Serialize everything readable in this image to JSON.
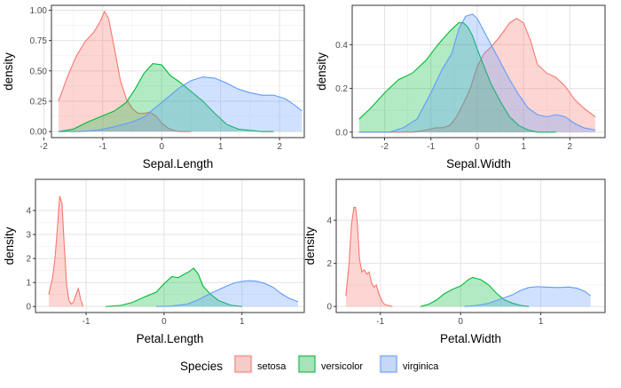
{
  "legend": {
    "title": "Species",
    "position": "bottom",
    "items": [
      {
        "name": "setosa",
        "color": "#F8766D"
      },
      {
        "name": "versicolor",
        "color": "#00BA38"
      },
      {
        "name": "virginica",
        "color": "#619CFF"
      }
    ]
  },
  "chart_data": [
    {
      "type": "area",
      "xlabel": "Sepal.Length",
      "ylabel": "density",
      "xlim": [
        -1.87,
        2.42
      ],
      "ylim": [
        -0.05,
        1.04
      ],
      "xticks": [
        -2,
        -1,
        0,
        1,
        2
      ],
      "yticks": [
        0.0,
        0.25,
        0.5,
        0.75,
        1.0
      ],
      "ytick_labels": [
        "0.00",
        "0.25",
        "0.50",
        "0.75",
        "1.00"
      ],
      "grid": true,
      "series": [
        {
          "name": "setosa",
          "x": [
            -1.75,
            -1.6,
            -1.45,
            -1.3,
            -1.15,
            -1.05,
            -0.97,
            -0.9,
            -0.8,
            -0.7,
            -0.6,
            -0.5,
            -0.4,
            -0.3,
            -0.2,
            -0.1,
            0.0,
            0.1,
            0.2,
            0.3,
            0.4,
            0.5
          ],
          "y": [
            0.25,
            0.45,
            0.62,
            0.74,
            0.82,
            0.9,
            0.99,
            0.93,
            0.68,
            0.42,
            0.27,
            0.19,
            0.15,
            0.15,
            0.16,
            0.13,
            0.07,
            0.03,
            0.01,
            0.0,
            0.0,
            0.0
          ]
        },
        {
          "name": "versicolor",
          "x": [
            -1.75,
            -1.5,
            -1.25,
            -1.0,
            -0.8,
            -0.6,
            -0.45,
            -0.3,
            -0.15,
            0.0,
            0.15,
            0.3,
            0.5,
            0.7,
            0.9,
            1.1,
            1.3,
            1.5,
            1.7,
            1.9
          ],
          "y": [
            0.0,
            0.02,
            0.08,
            0.13,
            0.17,
            0.24,
            0.35,
            0.48,
            0.56,
            0.55,
            0.46,
            0.41,
            0.33,
            0.25,
            0.15,
            0.06,
            0.02,
            0.01,
            0.0,
            0.0
          ],
          "fill_start": -1.75,
          "fill_end": 1.9
        },
        {
          "name": "virginica",
          "x": [
            -1.75,
            -1.4,
            -1.1,
            -0.8,
            -0.5,
            -0.3,
            -0.1,
            0.1,
            0.3,
            0.5,
            0.7,
            0.9,
            1.1,
            1.3,
            1.5,
            1.7,
            1.9,
            2.1,
            2.25,
            2.38
          ],
          "y": [
            0.0,
            0.0,
            0.01,
            0.04,
            0.08,
            0.12,
            0.2,
            0.28,
            0.36,
            0.42,
            0.45,
            0.44,
            0.4,
            0.35,
            0.32,
            0.3,
            0.3,
            0.27,
            0.22,
            0.17
          ]
        }
      ]
    },
    {
      "type": "area",
      "xlabel": "Sepal.Width",
      "ylabel": "density",
      "xlim": [
        -2.7,
        2.76
      ],
      "ylim": [
        -0.025,
        0.58
      ],
      "xticks": [
        -2,
        -1,
        0,
        1,
        2
      ],
      "yticks": [
        0.0,
        0.2,
        0.4
      ],
      "ytick_labels": [
        "0.0",
        "0.2",
        "0.4"
      ],
      "grid": true,
      "series": [
        {
          "name": "setosa",
          "x": [
            -2.55,
            -2.2,
            -1.8,
            -1.4,
            -1.1,
            -0.9,
            -0.75,
            -0.6,
            -0.45,
            -0.3,
            -0.15,
            0.0,
            0.15,
            0.3,
            0.5,
            0.7,
            0.85,
            1.0,
            1.15,
            1.3,
            1.5,
            1.7,
            1.9,
            2.1,
            2.3,
            2.55
          ],
          "y": [
            0.0,
            0.0,
            0.0,
            0.0,
            0.01,
            0.02,
            0.02,
            0.03,
            0.07,
            0.13,
            0.2,
            0.3,
            0.36,
            0.39,
            0.44,
            0.5,
            0.52,
            0.5,
            0.42,
            0.31,
            0.27,
            0.25,
            0.21,
            0.15,
            0.11,
            0.07
          ]
        },
        {
          "name": "versicolor",
          "x": [
            -2.55,
            -2.3,
            -2.0,
            -1.7,
            -1.4,
            -1.1,
            -0.85,
            -0.6,
            -0.4,
            -0.3,
            -0.2,
            -0.1,
            0.0,
            0.15,
            0.3,
            0.5,
            0.7,
            0.9,
            1.1,
            1.3,
            1.5,
            1.7
          ],
          "y": [
            0.06,
            0.11,
            0.18,
            0.24,
            0.27,
            0.33,
            0.4,
            0.46,
            0.5,
            0.5,
            0.48,
            0.44,
            0.38,
            0.3,
            0.22,
            0.14,
            0.07,
            0.03,
            0.01,
            0.0,
            0.0,
            0.0
          ]
        },
        {
          "name": "virginica",
          "x": [
            -2.55,
            -2.2,
            -1.9,
            -1.6,
            -1.3,
            -1.0,
            -0.75,
            -0.55,
            -0.4,
            -0.25,
            -0.1,
            0.0,
            0.15,
            0.3,
            0.5,
            0.7,
            0.9,
            1.1,
            1.3,
            1.5,
            1.7,
            1.9,
            2.1,
            2.3,
            2.55
          ],
          "y": [
            0.0,
            0.0,
            0.0,
            0.02,
            0.06,
            0.18,
            0.29,
            0.36,
            0.47,
            0.53,
            0.54,
            0.52,
            0.46,
            0.4,
            0.32,
            0.24,
            0.17,
            0.11,
            0.08,
            0.07,
            0.08,
            0.07,
            0.04,
            0.02,
            0.01
          ]
        }
      ]
    },
    {
      "type": "area",
      "xlabel": "Petal.Length",
      "ylabel": "density",
      "xlim": [
        -1.65,
        1.8
      ],
      "ylim": [
        -0.25,
        5.3
      ],
      "xticks": [
        -1,
        0,
        1
      ],
      "yticks": [
        0,
        1,
        2,
        3,
        4
      ],
      "ytick_labels": [
        "0",
        "1",
        "2",
        "3",
        "4"
      ],
      "grid": true,
      "series": [
        {
          "name": "setosa",
          "x": [
            -1.48,
            -1.43,
            -1.4,
            -1.37,
            -1.34,
            -1.31,
            -1.28,
            -1.25,
            -1.22,
            -1.19,
            -1.16,
            -1.13,
            -1.1,
            -1.07,
            -1.04
          ],
          "y": [
            0.5,
            1.2,
            2.0,
            3.2,
            4.6,
            4.3,
            2.5,
            0.9,
            0.25,
            0.1,
            0.2,
            0.5,
            0.75,
            0.3,
            0.0
          ]
        },
        {
          "name": "versicolor",
          "x": [
            -0.75,
            -0.55,
            -0.4,
            -0.25,
            -0.1,
            0.0,
            0.1,
            0.18,
            0.26,
            0.32,
            0.38,
            0.44,
            0.5,
            0.6,
            0.7,
            0.85,
            1.0
          ],
          "y": [
            0.0,
            0.05,
            0.18,
            0.4,
            0.6,
            0.95,
            1.25,
            1.2,
            1.35,
            1.45,
            1.6,
            1.35,
            0.85,
            0.5,
            0.25,
            0.06,
            0.0
          ]
        },
        {
          "name": "virginica",
          "x": [
            -0.1,
            0.1,
            0.3,
            0.45,
            0.6,
            0.7,
            0.8,
            0.9,
            1.0,
            1.1,
            1.2,
            1.3,
            1.4,
            1.5,
            1.6,
            1.72
          ],
          "y": [
            0.0,
            0.02,
            0.1,
            0.3,
            0.55,
            0.7,
            0.85,
            0.98,
            1.05,
            1.08,
            1.05,
            0.95,
            0.8,
            0.55,
            0.35,
            0.2
          ]
        }
      ]
    },
    {
      "type": "area",
      "xlabel": "Petal.Width",
      "ylabel": "density",
      "xlim": [
        -1.55,
        1.8
      ],
      "ylim": [
        -0.28,
        5.9
      ],
      "xticks": [
        -1,
        0,
        1
      ],
      "yticks": [
        0,
        2,
        4
      ],
      "ytick_labels": [
        "0",
        "2",
        "4"
      ],
      "grid": true,
      "series": [
        {
          "name": "setosa",
          "x": [
            -1.43,
            -1.39,
            -1.36,
            -1.33,
            -1.31,
            -1.29,
            -1.26,
            -1.23,
            -1.2,
            -1.17,
            -1.14,
            -1.11,
            -1.08,
            -1.05,
            -1.02,
            -0.98,
            -0.95,
            -0.9,
            -0.85
          ],
          "y": [
            0.5,
            2.0,
            3.8,
            4.6,
            4.6,
            4.0,
            2.2,
            1.6,
            1.7,
            1.5,
            1.6,
            1.1,
            0.9,
            1.0,
            0.6,
            0.25,
            0.1,
            0.05,
            0.0
          ]
        },
        {
          "name": "versicolor",
          "x": [
            -0.5,
            -0.4,
            -0.3,
            -0.2,
            -0.1,
            0.0,
            0.1,
            0.15,
            0.25,
            0.35,
            0.45,
            0.55,
            0.65,
            0.75,
            0.85
          ],
          "y": [
            0.0,
            0.1,
            0.3,
            0.6,
            0.8,
            0.95,
            1.25,
            1.35,
            1.25,
            1.0,
            0.6,
            0.3,
            0.15,
            0.05,
            0.0
          ]
        },
        {
          "name": "virginica",
          "x": [
            0.05,
            0.2,
            0.35,
            0.5,
            0.65,
            0.75,
            0.85,
            0.95,
            1.05,
            1.2,
            1.35,
            1.45,
            1.55,
            1.62
          ],
          "y": [
            0.0,
            0.05,
            0.15,
            0.35,
            0.55,
            0.75,
            0.88,
            0.92,
            0.9,
            0.88,
            0.9,
            0.85,
            0.7,
            0.5
          ]
        }
      ]
    }
  ]
}
